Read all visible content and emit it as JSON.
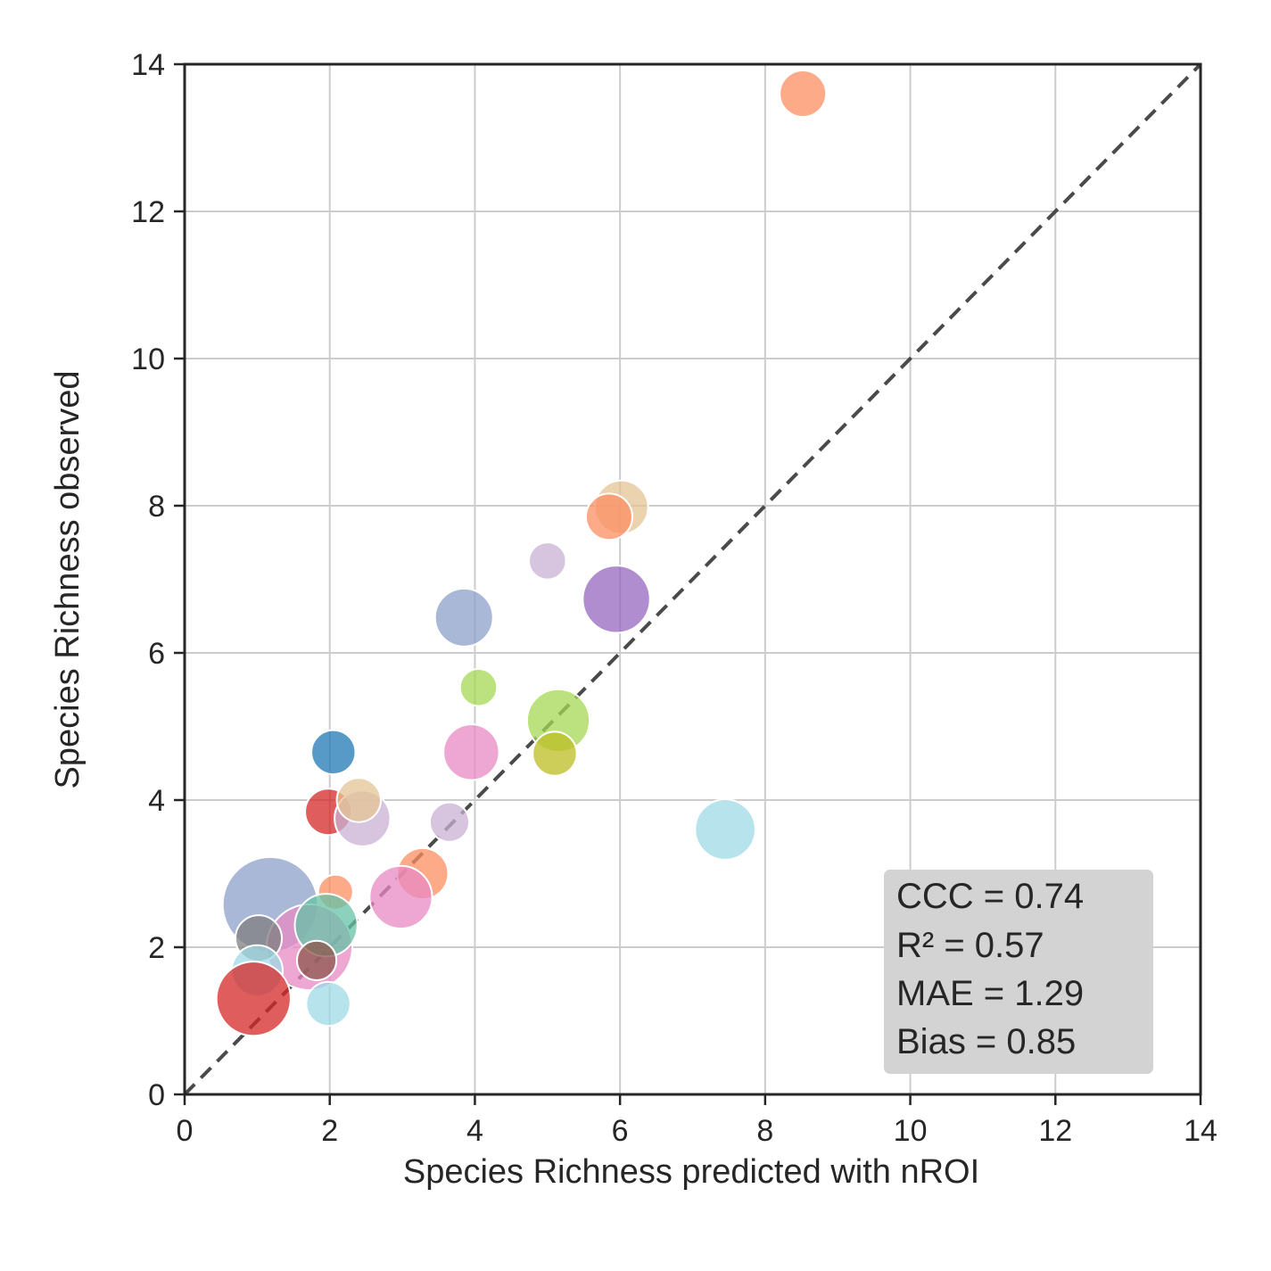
{
  "chart_data": {
    "type": "scatter",
    "title": "",
    "xlabel": "Species Richness predicted with nROI",
    "ylabel": "Species Richness observed",
    "xlim": [
      0,
      14
    ],
    "ylim": [
      0,
      14
    ],
    "xticks": [
      "0",
      "2",
      "4",
      "6",
      "8",
      "10",
      "12",
      "14"
    ],
    "yticks": [
      "0",
      "2",
      "4",
      "6",
      "8",
      "10",
      "12",
      "14"
    ],
    "grid": true,
    "reference_line": {
      "from": [
        0,
        0
      ],
      "to": [
        14,
        14
      ],
      "style": "dashed",
      "color": "#4a4a4a"
    },
    "points": [
      {
        "x": 8.52,
        "y": 13.6,
        "size": 1.0,
        "color": "#fc8d62"
      },
      {
        "x": 6.02,
        "y": 7.98,
        "size": 1.15,
        "color": "#e5c494"
      },
      {
        "x": 5.85,
        "y": 7.85,
        "size": 1.0,
        "color": "#fc8d62"
      },
      {
        "x": 5.0,
        "y": 7.25,
        "size": 0.8,
        "color": "#cab2d6"
      },
      {
        "x": 5.95,
        "y": 6.73,
        "size": 1.45,
        "color": "#9467bd"
      },
      {
        "x": 3.85,
        "y": 6.48,
        "size": 1.25,
        "color": "#8da0cb"
      },
      {
        "x": 4.05,
        "y": 5.53,
        "size": 0.8,
        "color": "#a6d854"
      },
      {
        "x": 5.15,
        "y": 5.08,
        "size": 1.35,
        "color": "#a6d854"
      },
      {
        "x": 5.1,
        "y": 4.63,
        "size": 0.95,
        "color": "#bcbd22"
      },
      {
        "x": 3.95,
        "y": 4.65,
        "size": 1.2,
        "color": "#e78ac3"
      },
      {
        "x": 2.05,
        "y": 4.65,
        "size": 0.95,
        "color": "#1f77b4"
      },
      {
        "x": 1.98,
        "y": 3.84,
        "size": 1.0,
        "color": "#d62728"
      },
      {
        "x": 2.45,
        "y": 3.75,
        "size": 1.2,
        "color": "#cab2d6"
      },
      {
        "x": 2.4,
        "y": 4.0,
        "size": 0.95,
        "color": "#e5c494"
      },
      {
        "x": 3.65,
        "y": 3.7,
        "size": 0.85,
        "color": "#cab2d6"
      },
      {
        "x": 7.45,
        "y": 3.6,
        "size": 1.3,
        "color": "#9edae5"
      },
      {
        "x": 3.28,
        "y": 3.0,
        "size": 1.1,
        "color": "#fc8d62"
      },
      {
        "x": 2.98,
        "y": 2.68,
        "size": 1.35,
        "color": "#e78ac3"
      },
      {
        "x": 2.08,
        "y": 2.75,
        "size": 0.75,
        "color": "#fc8d62"
      },
      {
        "x": 1.18,
        "y": 2.58,
        "size": 2.05,
        "color": "#8da0cb"
      },
      {
        "x": 1.72,
        "y": 2.0,
        "size": 1.85,
        "color": "#e78ac3"
      },
      {
        "x": 1.95,
        "y": 2.3,
        "size": 1.35,
        "color": "#66c2a5"
      },
      {
        "x": 1.02,
        "y": 2.12,
        "size": 1.0,
        "color": "#7f7f7f"
      },
      {
        "x": 1.82,
        "y": 1.82,
        "size": 0.85,
        "color": "#8c564b"
      },
      {
        "x": 1.0,
        "y": 1.68,
        "size": 1.1,
        "color": "#9edae5"
      },
      {
        "x": 0.95,
        "y": 1.3,
        "size": 1.6,
        "color": "#d62728"
      },
      {
        "x": 1.98,
        "y": 1.23,
        "size": 0.95,
        "color": "#9edae5"
      }
    ],
    "stats_box": {
      "placement": "bottom-right",
      "lines": [
        "CCC = 0.74",
        "R² = 0.57",
        "MAE = 1.29",
        "Bias = 0.85"
      ],
      "background": "#d3d3d3"
    }
  }
}
